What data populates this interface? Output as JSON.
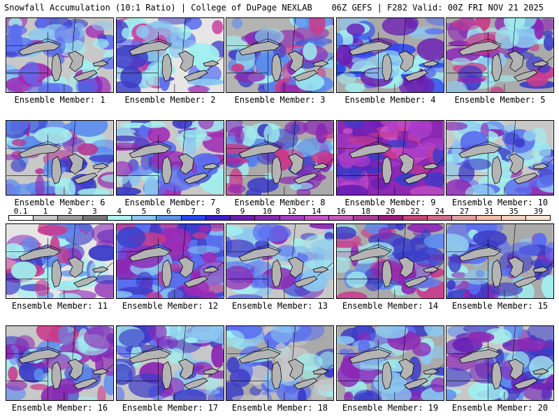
{
  "header": {
    "left_title": "Snowfall Accumulation (10:1 Ratio) | College of DuPage NEXLAB",
    "right_title": "06Z GEFS | F282 Valid: 00Z FRI NOV 21 2025"
  },
  "colorbar": {
    "labels": [
      "0.1",
      "1",
      "2",
      "3",
      "4",
      "5",
      "6",
      "7",
      "8",
      "9",
      "10",
      "12",
      "14",
      "16",
      "18",
      "20",
      "22",
      "24",
      "27",
      "31",
      "35",
      "39"
    ],
    "colors": [
      "#ffffff",
      "#c8c8c8",
      "#a0a0a0",
      "#787878",
      "#b4f0f0",
      "#8cc8f0",
      "#5a96f0",
      "#2a46f0",
      "#3c1ec8",
      "#6a1eb4",
      "#8c28b4",
      "#a83cc8",
      "#c850c8",
      "#c85ab4",
      "#b43c96",
      "#a01e78",
      "#c8467a",
      "#d26e8c",
      "#e6a0a0",
      "#f0bea8",
      "#f5d2be",
      "#fae6d2"
    ]
  },
  "panels": [
    {
      "label": "Ensemble Member: 1",
      "palette": [
        "#c8c8c8",
        "#a0f0f0",
        "#8cc8f0",
        "#5a6ef0",
        "#3c3cc8",
        "#a028b4"
      ]
    },
    {
      "label": "Ensemble Member: 2",
      "palette": [
        "#e6e6e6",
        "#a0f0f0",
        "#8cc8f0",
        "#5a6ef0",
        "#3c3cc8",
        "#c83ca0"
      ]
    },
    {
      "label": "Ensemble Member: 3",
      "palette": [
        "#b4b4b4",
        "#a0f0f0",
        "#5a8cf0",
        "#3c3cc8",
        "#8c28b4",
        "#c83c8c"
      ]
    },
    {
      "label": "Ensemble Member: 4",
      "palette": [
        "#aaaaaa",
        "#a0f0f0",
        "#8cc8f0",
        "#5a6ef0",
        "#2a46f0",
        "#6a1eb4"
      ]
    },
    {
      "label": "Ensemble Member: 5",
      "palette": [
        "#aaaaaa",
        "#a0f0f0",
        "#8cc8f0",
        "#3c3cc8",
        "#8c28b4",
        "#c83c8c"
      ]
    },
    {
      "label": "Ensemble Member: 6",
      "palette": [
        "#c8c8c8",
        "#a0f0f0",
        "#5a8cf0",
        "#3c3cc8",
        "#8c28b4",
        "#b43c96"
      ]
    },
    {
      "label": "Ensemble Member: 7",
      "palette": [
        "#c8c8c8",
        "#a0f0f0",
        "#8cc8f0",
        "#5a6ef0",
        "#3c3cc8",
        "#a028b4"
      ]
    },
    {
      "label": "Ensemble Member: 8",
      "palette": [
        "#aaaaaa",
        "#a0f0f0",
        "#5a8cf0",
        "#3c3cc8",
        "#8c28b4",
        "#c83c8c"
      ]
    },
    {
      "label": "Ensemble Member: 9",
      "palette": [
        "#8c28b4",
        "#6a1eb4",
        "#a83cc8",
        "#c850c8",
        "#3c3cc8",
        "#c83c8c"
      ]
    },
    {
      "label": "Ensemble Member: 10",
      "palette": [
        "#c8c8c8",
        "#a0f0f0",
        "#8cc8f0",
        "#5a6ef0",
        "#3c3cc8",
        "#8c28b4"
      ]
    },
    {
      "label": "Ensemble Member: 11",
      "palette": [
        "#e6e6e6",
        "#a0f0f0",
        "#5a8cf0",
        "#3c3cc8",
        "#8c28b4",
        "#c83c8c"
      ]
    },
    {
      "label": "Ensemble Member: 12",
      "palette": [
        "#5a6ef0",
        "#3c3cc8",
        "#8c28b4",
        "#a028b4",
        "#c83c8c",
        "#8cc8f0"
      ]
    },
    {
      "label": "Ensemble Member: 13",
      "palette": [
        "#c8c8c8",
        "#a0f0f0",
        "#8cc8f0",
        "#5a6ef0",
        "#3c3cc8",
        "#8c28b4"
      ]
    },
    {
      "label": "Ensemble Member: 14",
      "palette": [
        "#aaaaaa",
        "#a0f0f0",
        "#5a8cf0",
        "#3c3cc8",
        "#8c28b4",
        "#c83c8c"
      ]
    },
    {
      "label": "Ensemble Member: 15",
      "palette": [
        "#aaaaaa",
        "#a0f0f0",
        "#8cc8f0",
        "#5a6ef0",
        "#3c3cc8",
        "#8c28b4"
      ]
    },
    {
      "label": "Ensemble Member: 16",
      "palette": [
        "#c8c8c8",
        "#a0f0f0",
        "#5a8cf0",
        "#3c3cc8",
        "#8c28b4",
        "#c83c8c"
      ]
    },
    {
      "label": "Ensemble Member: 17",
      "palette": [
        "#c8c8c8",
        "#a0f0f0",
        "#8cc8f0",
        "#5a6ef0",
        "#3c3cc8",
        "#8c28b4"
      ]
    },
    {
      "label": "Ensemble Member: 18",
      "palette": [
        "#aaaaaa",
        "#c8c8c8",
        "#a0f0f0",
        "#8cc8f0",
        "#5a6ef0",
        "#3c3cc8"
      ]
    },
    {
      "label": "Ensemble Member: 19",
      "palette": [
        "#aaaaaa",
        "#a0f0f0",
        "#8cc8f0",
        "#5a6ef0",
        "#3c3cc8",
        "#8c28b4"
      ]
    },
    {
      "label": "Ensemble Member: 20",
      "palette": [
        "#c8c8c8",
        "#a0f0f0",
        "#5a8cf0",
        "#3c3cc8",
        "#6a1eb4",
        "#8c28b4"
      ]
    }
  ]
}
